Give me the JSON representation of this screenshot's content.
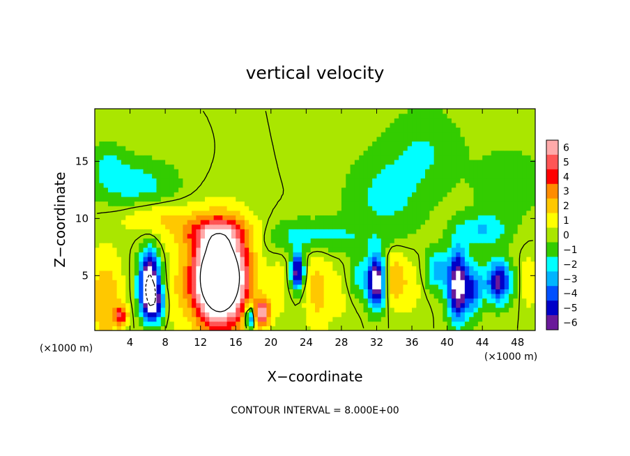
{
  "chart_data": {
    "type": "heatmap",
    "title": "vertical velocity",
    "xlabel": "X−coordinate",
    "ylabel": "Z−coordinate",
    "x_unit_left": "(×1000 m)",
    "x_unit_right": "(×1000 m)",
    "xlim": [
      0,
      50
    ],
    "ylim": [
      0.2,
      19.6
    ],
    "x_ticks": [
      4,
      8,
      12,
      16,
      20,
      24,
      28,
      32,
      36,
      40,
      44,
      48
    ],
    "y_ticks": [
      5,
      10,
      15
    ],
    "colorbar": {
      "ticks": [
        6,
        5,
        4,
        3,
        2,
        1,
        0,
        -1,
        -2,
        -3,
        -4,
        -5,
        -6
      ],
      "tick_labels": [
        "6",
        "5",
        "4",
        "3",
        "2",
        "1",
        "0",
        "−1",
        "−2",
        "−3",
        "−4",
        "−5",
        "−6"
      ],
      "colors": [
        "#ffaaaa",
        "#ff5555",
        "#ff0000",
        "#ff8c00",
        "#ffc800",
        "#ffff00",
        "#aae600",
        "#33cc00",
        "#00ffff",
        "#00b4ff",
        "#0050ff",
        "#0000c8",
        "#6a1a9a"
      ]
    },
    "contour_interval_label": "CONTOUR INTERVAL = 8.000E+00",
    "features": [
      {
        "x": 1.2,
        "z": 2.8,
        "w": 2.5,
        "sx": 1.3,
        "sz": 2.8
      },
      {
        "x": 3.0,
        "z": 1.5,
        "w": 4.0,
        "sx": 0.5,
        "sz": 0.6
      },
      {
        "x": 6.2,
        "z": 4.6,
        "w": -8.0,
        "sx": 0.8,
        "sz": 1.8
      },
      {
        "x": 6.7,
        "z": 2.6,
        "w": -5.0,
        "sx": 0.9,
        "sz": 1.2
      },
      {
        "x": 9.0,
        "z": 3.5,
        "w": 0.8,
        "sx": 1.2,
        "sz": 2.5
      },
      {
        "x": 14.2,
        "z": 4.8,
        "w": 14.0,
        "sx": 2.1,
        "sz": 2.8
      },
      {
        "x": 17.6,
        "z": 1.4,
        "w": -5.0,
        "sx": 0.4,
        "sz": 0.8
      },
      {
        "x": 19.0,
        "z": 1.8,
        "w": 6.0,
        "sx": 0.6,
        "sz": 0.8
      },
      {
        "x": 21.0,
        "z": 4.0,
        "w": 0.8,
        "sx": 0.8,
        "sz": 2.2
      },
      {
        "x": 23.0,
        "z": 5.4,
        "w": -6.5,
        "sx": 0.5,
        "sz": 1.1
      },
      {
        "x": 25.2,
        "z": 3.8,
        "w": 1.8,
        "sx": 1.0,
        "sz": 2.5
      },
      {
        "x": 28.0,
        "z": 3.5,
        "w": 0.8,
        "sx": 1.5,
        "sz": 2.0
      },
      {
        "x": 30.0,
        "z": 4.8,
        "w": -2.0,
        "sx": 1.0,
        "sz": 1.5
      },
      {
        "x": 32.0,
        "z": 4.5,
        "w": -7.5,
        "sx": 0.7,
        "sz": 1.6
      },
      {
        "x": 34.0,
        "z": 4.8,
        "w": 2.5,
        "sx": 0.9,
        "sz": 1.6
      },
      {
        "x": 36.0,
        "z": 4.0,
        "w": 0.8,
        "sx": 1.0,
        "sz": 2.0
      },
      {
        "x": 38.8,
        "z": 5.5,
        "w": -3.0,
        "sx": 0.9,
        "sz": 1.2
      },
      {
        "x": 41.2,
        "z": 4.2,
        "w": -7.5,
        "sx": 0.8,
        "sz": 2.2
      },
      {
        "x": 43.0,
        "z": 3.8,
        "w": -4.0,
        "sx": 0.7,
        "sz": 1.5
      },
      {
        "x": 45.8,
        "z": 4.5,
        "w": -6.0,
        "sx": 1.0,
        "sz": 1.3
      },
      {
        "x": 49.3,
        "z": 4.5,
        "w": 1.5,
        "sx": 0.6,
        "sz": 1.5
      },
      {
        "x": 14.0,
        "z": 8.8,
        "w": 3.0,
        "sx": 3.5,
        "sz": 1.0
      },
      {
        "x": 7.0,
        "z": 10.2,
        "w": 1.5,
        "sx": 3.0,
        "sz": 1.0
      },
      {
        "x": 5.0,
        "z": 13.0,
        "w": -2.0,
        "sx": 3.0,
        "sz": 1.5
      },
      {
        "x": 1.5,
        "z": 14.5,
        "w": -1.5,
        "sx": 1.5,
        "sz": 1.5
      },
      {
        "x": 24.0,
        "z": 8.5,
        "w": -2.0,
        "sx": 5.0,
        "sz": 1.0
      },
      {
        "x": 33.0,
        "z": 12.0,
        "w": -1.8,
        "sx": 3.0,
        "sz": 2.5
      },
      {
        "x": 37.5,
        "z": 16.0,
        "w": -1.5,
        "sx": 3.0,
        "sz": 2.5
      },
      {
        "x": 44.0,
        "z": 9.0,
        "w": -2.5,
        "sx": 2.0,
        "sz": 1.0
      },
      {
        "x": 47.0,
        "z": 13.0,
        "w": -1.5,
        "sx": 2.5,
        "sz": 2.0
      }
    ]
  }
}
